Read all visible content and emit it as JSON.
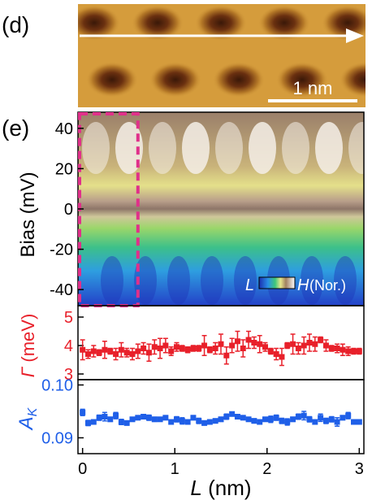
{
  "panel_d": {
    "label": "(d)",
    "scalebar_label": "1 nm"
  },
  "panel_e": {
    "label": "(e)",
    "colorbar": {
      "low": "L",
      "high": "H",
      "unit": "(Nor.)"
    }
  },
  "colors": {
    "gamma": "#e8202a",
    "ak": "#1f5fe8",
    "roi": "#e0308a"
  },
  "chart_data": [
    {
      "type": "heatmap",
      "ylabel": "Bias (mV)",
      "yticks": [
        40,
        20,
        0,
        -20,
        -40
      ],
      "ylim": [
        -48,
        48
      ],
      "xlim": [
        -0.05,
        3.05
      ],
      "roi_x": [
        -0.05,
        0.6
      ]
    },
    {
      "type": "scatter",
      "ylabel": "Γ (meV)",
      "yticks": [
        5,
        4,
        3
      ],
      "ylim": [
        2.8,
        5.4
      ],
      "x": [
        0.0,
        0.06,
        0.12,
        0.18,
        0.24,
        0.3,
        0.36,
        0.42,
        0.48,
        0.54,
        0.6,
        0.66,
        0.72,
        0.78,
        0.84,
        0.9,
        0.96,
        1.02,
        1.08,
        1.14,
        1.2,
        1.26,
        1.32,
        1.38,
        1.44,
        1.5,
        1.56,
        1.62,
        1.68,
        1.74,
        1.8,
        1.86,
        1.92,
        1.98,
        2.04,
        2.1,
        2.16,
        2.22,
        2.28,
        2.34,
        2.4,
        2.46,
        2.52,
        2.58,
        2.64,
        2.7,
        2.76,
        2.82,
        2.88,
        2.94,
        3.0
      ],
      "values": [
        3.85,
        3.7,
        3.8,
        3.75,
        3.85,
        3.8,
        3.7,
        3.85,
        3.75,
        3.7,
        3.8,
        3.9,
        3.75,
        3.95,
        3.9,
        4.0,
        3.8,
        3.95,
        3.9,
        3.85,
        3.9,
        3.9,
        4.0,
        3.85,
        3.9,
        4.05,
        3.65,
        4.0,
        4.15,
        3.9,
        4.2,
        4.1,
        4.05,
        3.95,
        3.8,
        3.7,
        3.6,
        4.0,
        4.05,
        3.9,
        4.0,
        4.1,
        4.05,
        4.2,
        4.0,
        3.9,
        3.9,
        3.85,
        3.8,
        3.8,
        3.8
      ],
      "errors": [
        0.35,
        0.15,
        0.2,
        0.1,
        0.3,
        0.1,
        0.2,
        0.25,
        0.15,
        0.2,
        0.25,
        0.2,
        0.3,
        0.25,
        0.35,
        0.25,
        0.15,
        0.15,
        0.1,
        0.1,
        0.1,
        0.1,
        0.35,
        0.1,
        0.2,
        0.35,
        0.3,
        0.25,
        0.35,
        0.3,
        0.3,
        0.2,
        0.3,
        0.15,
        0.1,
        0.2,
        0.3,
        0.1,
        0.35,
        0.2,
        0.3,
        0.3,
        0.25,
        0.1,
        0.2,
        0.1,
        0.15,
        0.2,
        0.15,
        0.1,
        0.1
      ]
    },
    {
      "type": "scatter",
      "ylabel": "A_K",
      "yticks": [
        0.1,
        0.09
      ],
      "ytick_labels": [
        "0.10",
        "0.09"
      ],
      "ylim": [
        0.087,
        0.101
      ],
      "xlabel": "L (nm)",
      "xticks": [
        0,
        1,
        2,
        3
      ],
      "xlim": [
        -0.05,
        3.05
      ],
      "x": [
        0.0,
        0.06,
        0.12,
        0.18,
        0.24,
        0.3,
        0.36,
        0.42,
        0.48,
        0.54,
        0.6,
        0.66,
        0.72,
        0.78,
        0.84,
        0.9,
        0.96,
        1.02,
        1.08,
        1.14,
        1.2,
        1.26,
        1.32,
        1.38,
        1.44,
        1.5,
        1.56,
        1.62,
        1.68,
        1.74,
        1.8,
        1.86,
        1.92,
        1.98,
        2.04,
        2.1,
        2.16,
        2.22,
        2.28,
        2.34,
        2.4,
        2.46,
        2.52,
        2.58,
        2.64,
        2.7,
        2.76,
        2.82,
        2.88,
        2.94,
        3.0
      ],
      "values": [
        0.0948,
        0.0928,
        0.093,
        0.0938,
        0.094,
        0.0935,
        0.0942,
        0.093,
        0.0928,
        0.0935,
        0.0938,
        0.094,
        0.0938,
        0.0935,
        0.0935,
        0.0938,
        0.093,
        0.0935,
        0.0932,
        0.093,
        0.0938,
        0.0932,
        0.0928,
        0.093,
        0.0932,
        0.0935,
        0.094,
        0.0945,
        0.094,
        0.0938,
        0.0935,
        0.0932,
        0.093,
        0.0935,
        0.0935,
        0.0938,
        0.0932,
        0.093,
        0.0935,
        0.094,
        0.0942,
        0.0935,
        0.093,
        0.0938,
        0.0932,
        0.0935,
        0.093,
        0.0938,
        0.0942,
        0.093,
        0.093
      ],
      "errors": [
        0.0006,
        0.0005,
        0.0004,
        0.0005,
        0.0008,
        0.0004,
        0.0006,
        0.0005,
        0.0004,
        0.0003,
        0.0003,
        0.0004,
        0.0005,
        0.0004,
        0.0003,
        0.0003,
        0.0004,
        0.0005,
        0.0006,
        0.0003,
        0.0004,
        0.0005,
        0.0004,
        0.0003,
        0.0003,
        0.0004,
        0.0005,
        0.0003,
        0.0004,
        0.0003,
        0.0003,
        0.0004,
        0.0003,
        0.0003,
        0.0006,
        0.0005,
        0.0005,
        0.0006,
        0.0004,
        0.0005,
        0.0008,
        0.0005,
        0.0004,
        0.0007,
        0.0005,
        0.0005,
        0.0008,
        0.0004,
        0.0006,
        0.0003,
        0.0003
      ]
    }
  ]
}
